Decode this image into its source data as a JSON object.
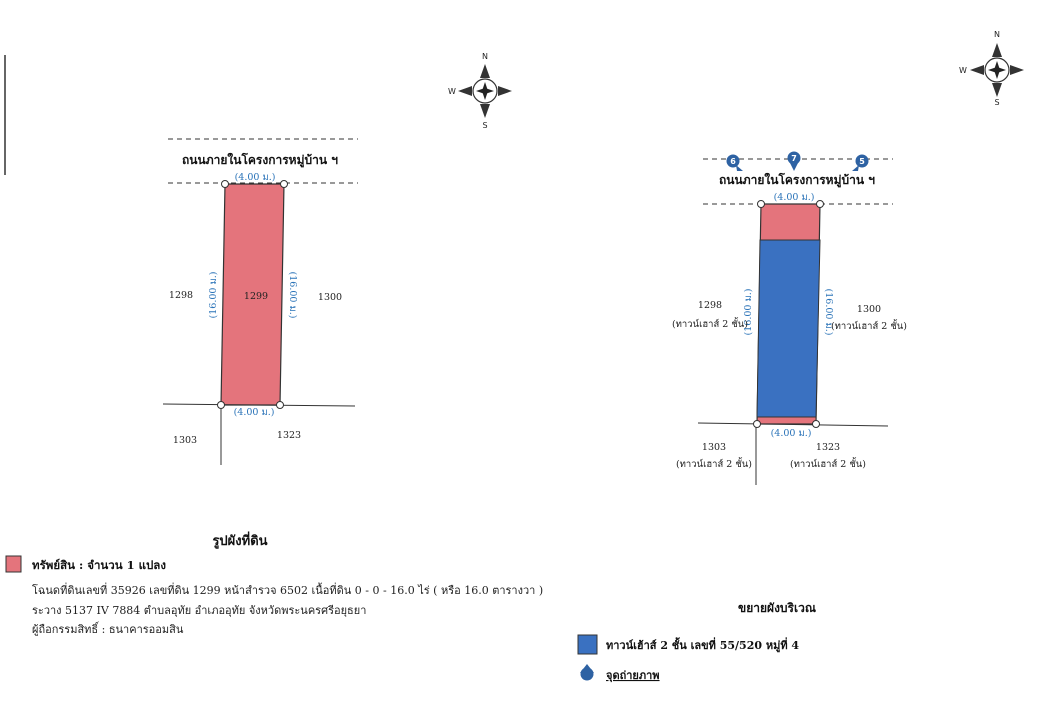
{
  "colors": {
    "parcel_fill": "#e4747c",
    "house_fill": "#3a71c1",
    "line": "#333333",
    "dim_text": "#2a73b8",
    "photo_marker": "#2e62a3"
  },
  "icons": [
    "compass-rose-icon",
    "photo-point-icon"
  ],
  "compass": {
    "left": {
      "n": "N",
      "s": "S",
      "w": "W"
    },
    "right": {
      "n": "N",
      "s": "S",
      "w": "W"
    }
  },
  "left_map": {
    "road_label": "ถนนภายในโครงการหมู่บ้าน ฯ",
    "dim_top": "(4.00 ม.)",
    "dim_bottom": "(4.00 ม.)",
    "dim_left": "(16.00 ม.)",
    "dim_right": "(16.00 ม.)",
    "parcel": "1299",
    "west": "1298",
    "east": "1300",
    "sw": "1303",
    "se": "1323"
  },
  "right_map": {
    "road_label": "ถนนภายในโครงการหมู่บ้าน ฯ",
    "dim_top": "(4.00 ม.)",
    "dim_bottom": "(4.00 ม.)",
    "dim_left": "(16.00 ม.)",
    "dim_right": "(16.00 ม.)",
    "west": "1298",
    "west_sub": "(ทาวน์เฮาส์ 2 ชั้น)",
    "east": "1300",
    "east_sub": "(ทาวน์เฮาส์ 2 ชั้น)",
    "sw": "1303",
    "sw_sub": "(ทาวน์เฮาส์ 2 ชั้น)",
    "se": "1323",
    "se_sub": "(ทาวน์เฮาส์ 2 ชั้น)",
    "markers": [
      "6",
      "7",
      "5"
    ]
  },
  "left_caption": {
    "title": "รูปผังที่ดิน",
    "asset_label": "ทรัพย์สิน : จำนวน 1 แปลง",
    "line1": "โฉนดที่ดินเลขที่  35926  เลขที่ดิน  1299  หน้าสำรวจ  6502  เนื้อที่ดิน 0 - 0 - 16.0 ไร่ ( หรือ 16.0 ตารางวา )",
    "line2": "ระวาง 5137 IV 7884  ตำบลอุทัย  อำเภออุทัย  จังหวัดพระนครศรีอยุธยา",
    "line3": "ผู้ถือกรรมสิทธิ์ :  ธนาคารออมสิน"
  },
  "right_caption": {
    "title": "ขยายผังบริเวณ",
    "legend_house": "ทาวน์เฮ้าส์ 2 ชั้น เลขที่ 55/520 หมู่ที่ 4",
    "legend_photo": "จุดถ่ายภาพ"
  }
}
